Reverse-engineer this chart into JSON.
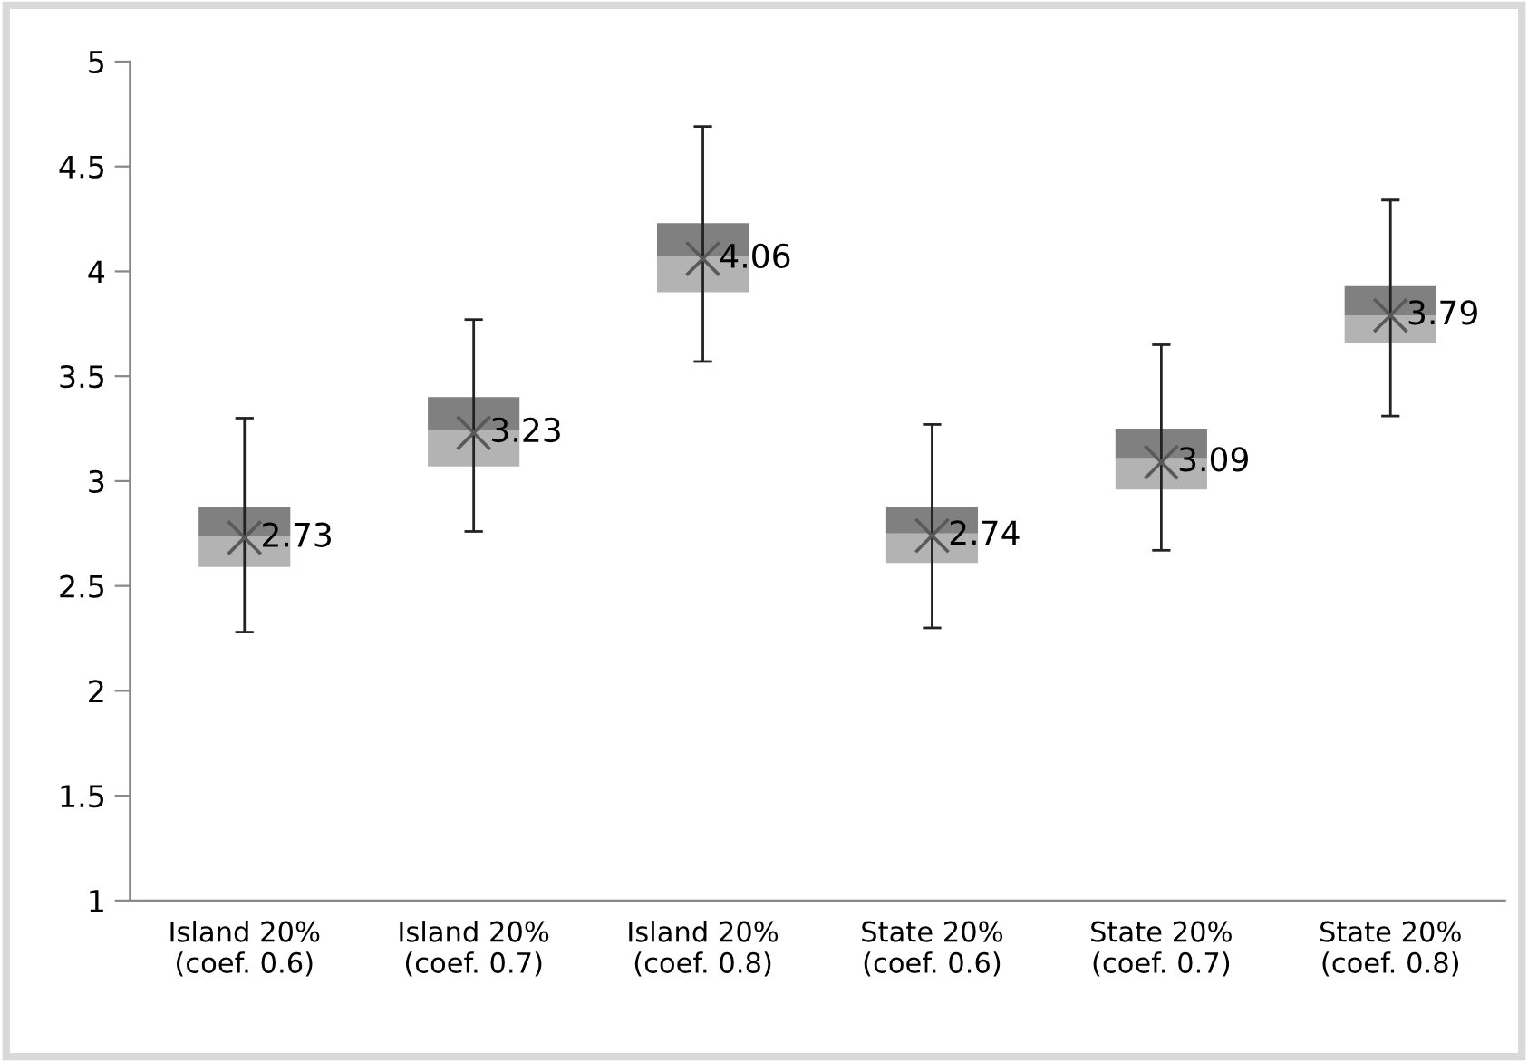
{
  "chart_data": {
    "type": "box",
    "categories": [
      "Island 20%\n(coef. 0.6)",
      "Island 20%\n(coef. 0.7)",
      "Island 20%\n(coef. 0.8)",
      "State 20%\n(coef. 0.6)",
      "State 20%\n(coef. 0.7)",
      "State 20%\n(coef. 0.8)"
    ],
    "series": [
      {
        "color": "#b3b3b3",
        "boxes": [
          {
            "low": 2.28,
            "q1": 2.59,
            "median": 2.74,
            "q3": 2.875,
            "high": 3.3
          },
          {
            "low": 2.76,
            "q1": 3.07,
            "median": 3.24,
            "q3": 3.4,
            "high": 3.77
          },
          {
            "low": 3.57,
            "q1": 3.9,
            "median": 4.07,
            "q3": 4.23,
            "high": 4.69
          },
          {
            "low": 2.3,
            "q1": 2.61,
            "median": 2.75,
            "q3": 2.875,
            "high": 3.27
          },
          {
            "low": 2.67,
            "q1": 2.96,
            "median": 3.11,
            "q3": 3.25,
            "high": 3.65
          },
          {
            "low": 3.31,
            "q1": 3.66,
            "median": 3.79,
            "q3": 3.93,
            "high": 4.34
          }
        ]
      },
      {
        "type": "scatter",
        "color": "#595959",
        "marker": "cross",
        "x": [
          "Island 20%\n(coef. 0.6)",
          "Island 20%\n(coef. 0.7)",
          "Island 20%\n(coef. 0.8)",
          "State 20%\n(coef. 0.6)",
          "State 20%\n(coef. 0.7)",
          "State 20%\n(coef. 0.8)"
        ],
        "values": [
          2.73,
          3.23,
          4.06,
          2.74,
          3.09,
          3.79
        ],
        "value_labels": [
          "2.73",
          "3.23",
          "4.06",
          "2.74",
          "3.09",
          "3.79"
        ]
      }
    ],
    "ylim": [
      1,
      5
    ],
    "yticks": [
      1,
      1.5,
      2,
      2.5,
      3,
      3.5,
      4,
      4.5,
      5
    ],
    "grid": false
  }
}
